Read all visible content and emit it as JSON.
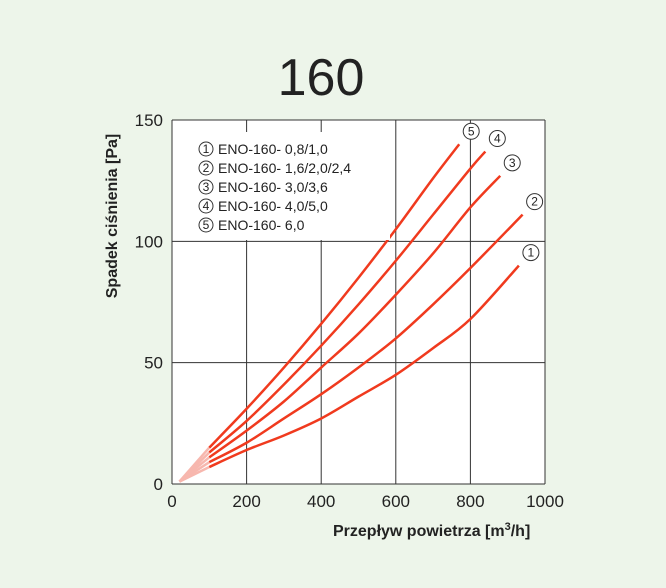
{
  "chart_data": {
    "type": "line",
    "title": "160",
    "xlabel": "Przepływ  powietrza [m",
    "xlabel_sup": "3",
    "xlabel_end": "/h]",
    "ylabel": "Spadek  ciśnienia [Pa]",
    "xlim": [
      0,
      1000
    ],
    "ylim": [
      0,
      150
    ],
    "x_ticks": [
      "0",
      "200",
      "400",
      "600",
      "800",
      "1000"
    ],
    "y_ticks": [
      "0",
      "50",
      "100",
      "150"
    ],
    "grid": true,
    "legend_position": "top-left",
    "colors": {
      "series": "#f03a1e",
      "faded": "#f7b7ae",
      "grid": "#333333"
    },
    "series": [
      {
        "id": "1",
        "name": "ENO-160- 0,8/1,0",
        "x": [
          100,
          200,
          300,
          400,
          500,
          600,
          700,
          800,
          930
        ],
        "y": [
          7,
          14,
          20,
          27,
          36,
          45,
          56,
          68,
          90
        ]
      },
      {
        "id": "2",
        "name": "ENO-160- 1,6/2,0/2,4",
        "x": [
          100,
          200,
          300,
          400,
          500,
          600,
          700,
          800,
          940
        ],
        "y": [
          9,
          17,
          27,
          37,
          48,
          60,
          74,
          89,
          111
        ]
      },
      {
        "id": "3",
        "name": "ENO-160- 3,0/3,6",
        "x": [
          100,
          200,
          300,
          400,
          500,
          600,
          700,
          800,
          880
        ],
        "y": [
          11,
          22,
          34,
          48,
          62,
          78,
          95,
          114,
          127
        ]
      },
      {
        "id": "4",
        "name": "ENO-160- 4,0/5,0",
        "x": [
          100,
          200,
          300,
          400,
          500,
          600,
          700,
          800,
          840
        ],
        "y": [
          13,
          26,
          41,
          57,
          74,
          92,
          111,
          130,
          137
        ]
      },
      {
        "id": "5",
        "name": "ENO-160- 6,0",
        "x": [
          100,
          200,
          300,
          400,
          500,
          600,
          700,
          770
        ],
        "y": [
          15,
          31,
          48,
          66,
          85,
          105,
          126,
          140
        ]
      }
    ],
    "faded_origin": [
      20,
      1
    ]
  }
}
